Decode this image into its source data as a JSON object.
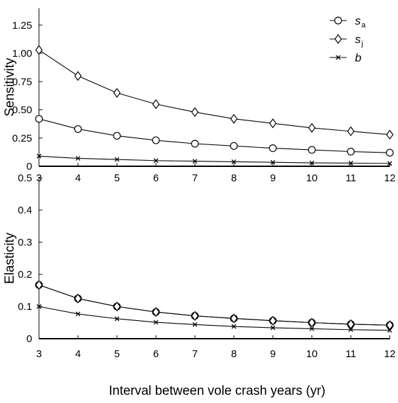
{
  "chart_data": [
    {
      "type": "line",
      "ylabel": "Sensitivity",
      "xlabel": "",
      "x": [
        3,
        4,
        5,
        6,
        7,
        8,
        9,
        10,
        11,
        12
      ],
      "xlim": [
        3,
        12
      ],
      "ylim": [
        0,
        1.4
      ],
      "xticks": [
        "3",
        "4",
        "5",
        "6",
        "7",
        "8",
        "9",
        "10",
        "11",
        "12"
      ],
      "yticks": [
        {
          "value": 0,
          "label": "0"
        },
        {
          "value": 0.25,
          "label": "0.25"
        },
        {
          "value": 0.5,
          "label": "0.50"
        },
        {
          "value": 0.75,
          "label": "0.75"
        },
        {
          "value": 1.0,
          "label": "1.00"
        },
        {
          "value": 1.25,
          "label": "1.25"
        }
      ],
      "legend": "top-right",
      "series": [
        {
          "name": "s",
          "sub": "a",
          "marker": "circle",
          "values": [
            0.42,
            0.33,
            0.27,
            0.23,
            0.2,
            0.18,
            0.16,
            0.145,
            0.13,
            0.12
          ]
        },
        {
          "name": "s",
          "sub": "j",
          "marker": "diamond",
          "values": [
            1.03,
            0.8,
            0.65,
            0.55,
            0.48,
            0.42,
            0.38,
            0.34,
            0.31,
            0.28
          ]
        },
        {
          "name": "b",
          "sub": "",
          "marker": "x",
          "values": [
            0.09,
            0.07,
            0.06,
            0.05,
            0.045,
            0.04,
            0.035,
            0.03,
            0.028,
            0.025
          ]
        }
      ]
    },
    {
      "type": "line",
      "ylabel": "Elasticity",
      "xlabel": "Interval between vole crash years (yr)",
      "x": [
        3,
        4,
        5,
        6,
        7,
        8,
        9,
        10,
        11,
        12
      ],
      "xlim": [
        3,
        12
      ],
      "ylim": [
        0,
        0.5
      ],
      "xticks": [
        "3",
        "4",
        "5",
        "6",
        "7",
        "8",
        "9",
        "10",
        "11",
        "12"
      ],
      "yticks": [
        {
          "value": 0,
          "label": "0"
        },
        {
          "value": 0.1,
          "label": "0.1"
        },
        {
          "value": 0.2,
          "label": "0.2"
        },
        {
          "value": 0.3,
          "label": "0.3"
        },
        {
          "value": 0.4,
          "label": "0.4"
        },
        {
          "value": 0.5,
          "label": "0.5"
        }
      ],
      "series": [
        {
          "name": "s",
          "sub": "a",
          "marker": "circle",
          "values": [
            0.167,
            0.125,
            0.1,
            0.083,
            0.071,
            0.063,
            0.056,
            0.05,
            0.045,
            0.042
          ]
        },
        {
          "name": "s",
          "sub": "j",
          "marker": "diamond",
          "values": [
            0.167,
            0.125,
            0.1,
            0.083,
            0.071,
            0.063,
            0.056,
            0.05,
            0.045,
            0.042
          ]
        },
        {
          "name": "b",
          "sub": "",
          "marker": "x",
          "values": [
            0.1,
            0.077,
            0.062,
            0.051,
            0.044,
            0.038,
            0.034,
            0.031,
            0.028,
            0.026
          ]
        }
      ]
    }
  ]
}
